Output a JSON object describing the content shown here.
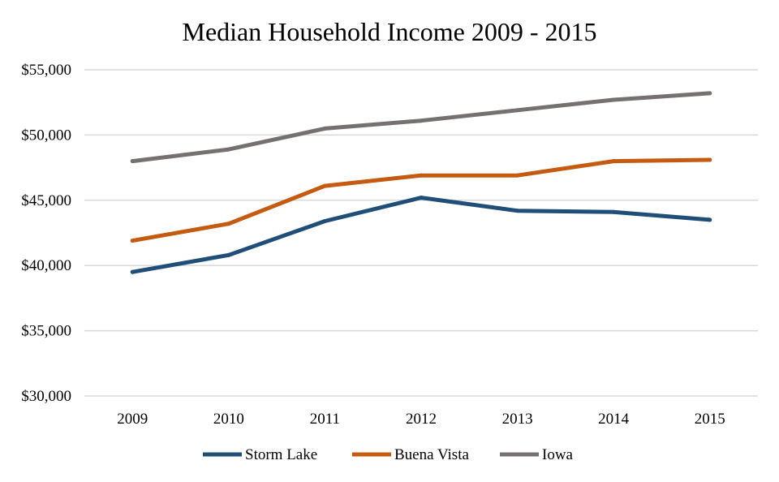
{
  "chart_data": {
    "type": "line",
    "title": "Median Household Income 2009 - 2015",
    "xlabel": "",
    "ylabel": "",
    "categories": [
      "2009",
      "2010",
      "2011",
      "2012",
      "2013",
      "2014",
      "2015"
    ],
    "ylim": [
      30000,
      55000
    ],
    "y_ticks": [
      {
        "value": 30000,
        "label": "$30,000"
      },
      {
        "value": 35000,
        "label": "$35,000"
      },
      {
        "value": 40000,
        "label": "$40,000"
      },
      {
        "value": 45000,
        "label": "$45,000"
      },
      {
        "value": 50000,
        "label": "$50,000"
      },
      {
        "value": 55000,
        "label": "$55,000"
      }
    ],
    "grid": true,
    "legend_position": "bottom",
    "series": [
      {
        "name": "Storm Lake",
        "color": "#1f4e79",
        "values": [
          39500,
          40800,
          43400,
          45200,
          44200,
          44100,
          43500
        ]
      },
      {
        "name": "Buena Vista",
        "color": "#c55a11",
        "values": [
          41900,
          43200,
          46100,
          46900,
          46900,
          48000,
          48100
        ]
      },
      {
        "name": "Iowa",
        "color": "#767171",
        "values": [
          48000,
          48900,
          50500,
          51100,
          51900,
          52700,
          53200
        ]
      }
    ]
  }
}
